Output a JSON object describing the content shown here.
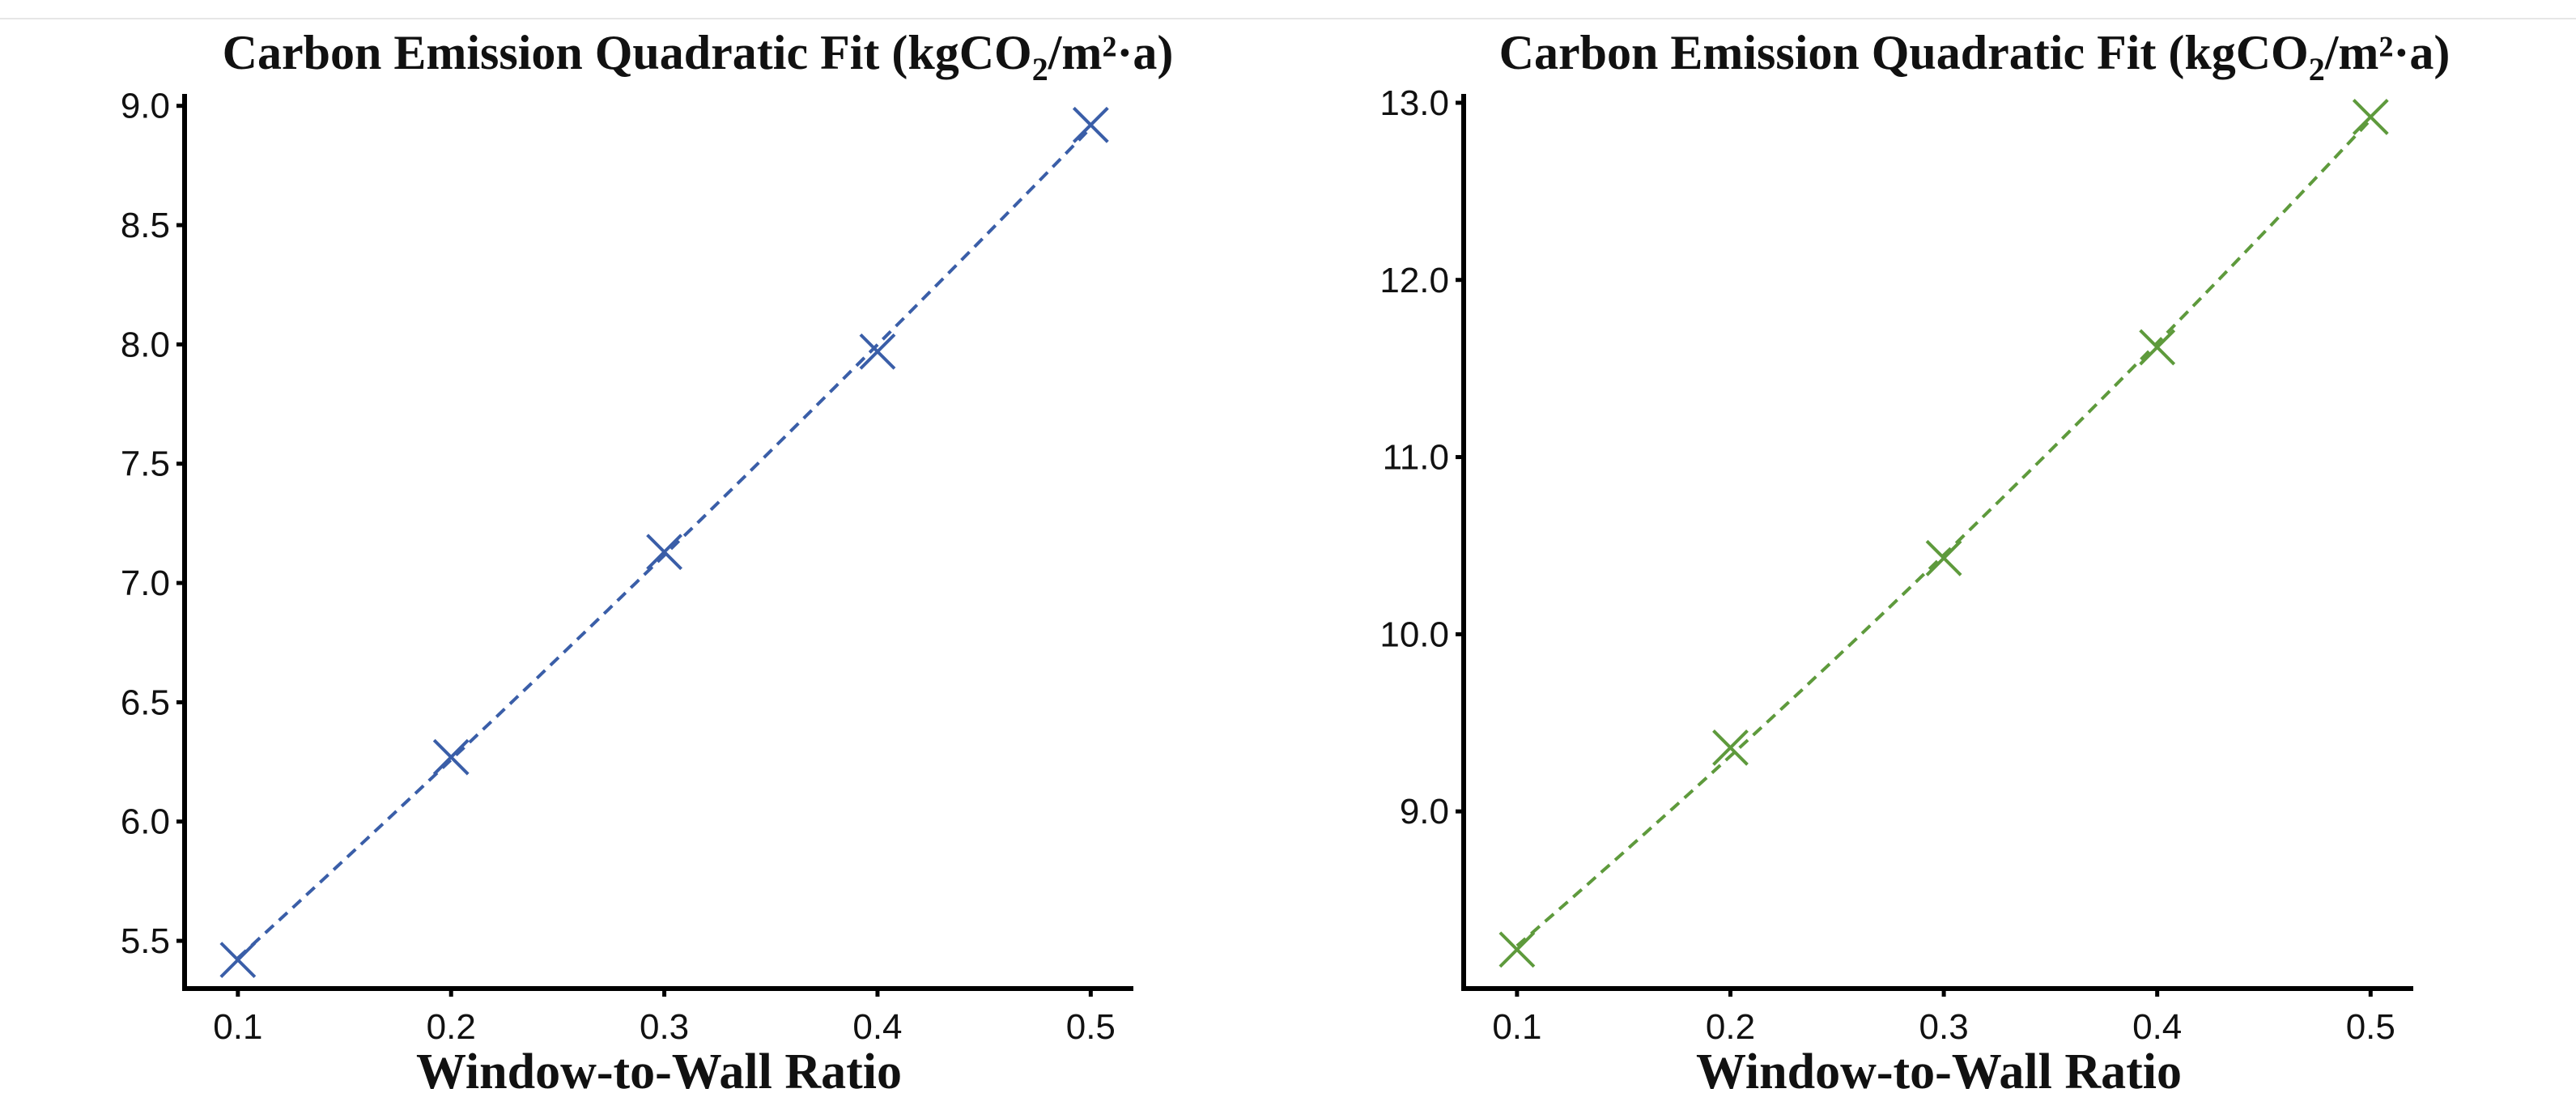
{
  "colors": {
    "left_series": "#3a5ea8",
    "right_series": "#5e9a3c"
  },
  "chart_data": [
    {
      "type": "scatter",
      "title": "Carbon Emission Quadratic Fit (kgCO",
      "title_sub": "2",
      "title_tail": "/m²·a)",
      "xlabel": "Window-to-Wall Ratio",
      "ylabel": "",
      "x_ticks": [
        "0.1",
        "0.2",
        "0.3",
        "0.4",
        "0.5"
      ],
      "y_ticks": [
        "5.5",
        "6.0",
        "6.5",
        "7.0",
        "7.5",
        "8.0",
        "8.5",
        "9.0"
      ],
      "xlim": [
        0.075,
        0.52
      ],
      "ylim": [
        5.3,
        9.05
      ],
      "grid": false,
      "series": [
        {
          "name": "Carbon Emission",
          "marker": "x",
          "fit": "quadratic dashed",
          "x": [
            0.1,
            0.2,
            0.3,
            0.4,
            0.5
          ],
          "y": [
            5.42,
            6.27,
            7.13,
            7.97,
            8.92
          ]
        }
      ]
    },
    {
      "type": "scatter",
      "title": "Carbon Emission Quadratic Fit  (kgCO",
      "title_sub": "2",
      "title_tail": "/m²·a)",
      "xlabel": "Window-to-Wall Ratio",
      "ylabel": "",
      "x_ticks": [
        "0.1",
        "0.2",
        "0.3",
        "0.4",
        "0.5"
      ],
      "y_ticks": [
        "9.0",
        "10.0",
        "11.0",
        "12.0",
        "13.0"
      ],
      "xlim": [
        0.075,
        0.52
      ],
      "ylim": [
        8.0,
        13.05
      ],
      "grid": false,
      "series": [
        {
          "name": "Carbon Emission",
          "marker": "x",
          "fit": "quadratic dashed",
          "x": [
            0.1,
            0.2,
            0.3,
            0.4,
            0.5
          ],
          "y": [
            8.22,
            9.36,
            10.43,
            11.62,
            12.92
          ]
        }
      ]
    }
  ]
}
